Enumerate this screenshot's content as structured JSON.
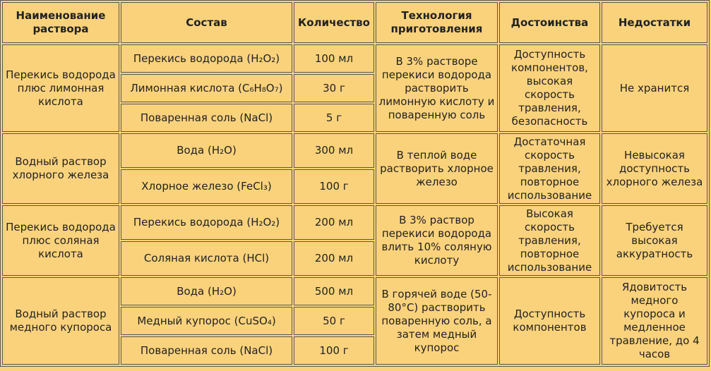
{
  "table": {
    "header": [
      "Наименование раствора",
      "Состав",
      "Количество",
      "Технология приготовления",
      "Достоинства",
      "Недостатки"
    ],
    "groups": [
      {
        "name": "Перекись водорода плюс лимонная кислота",
        "items": [
          {
            "composition": "Перекись водорода (H₂O₂)",
            "amount": "100 мл"
          },
          {
            "composition": "Лимонная кислота (C₆H₈O₇)",
            "amount": "30 г"
          },
          {
            "composition": "Поваренная соль (NaCl)",
            "amount": "5 г"
          }
        ],
        "technology": "В 3% растворе перекиси водорода растворить лимонную кислоту и поваренную соль",
        "advantages": "Доступность компонентов, высокая скорость травления, безопасность",
        "disadvantages": "Не хранится"
      },
      {
        "name": "Водный раствор хлорного железа",
        "items": [
          {
            "composition": "Вода (H₂O)",
            "amount": "300 мл"
          },
          {
            "composition": "Хлорное железо (FeCl₃)",
            "amount": "100 г"
          }
        ],
        "technology": "В теплой воде растворить хлорное железо",
        "advantages": "Достаточная скорость травления, повторное использование",
        "disadvantages": "Невысокая доступность хлорного железа"
      },
      {
        "name": "Перекись водорода плюс соляная кислота",
        "items": [
          {
            "composition": "Перекись водорода (H₂O₂)",
            "amount": "200 мл"
          },
          {
            "composition": "Соляная кислота (HCl)",
            "amount": "200 мл"
          }
        ],
        "technology": "В 3% раствор перекиси водорода влить 10% соляную кислоту",
        "advantages": "Высокая скорость травления, повторное использование",
        "disadvantages": "Требуется высокая аккуратность"
      },
      {
        "name": "Водный раствор медного купороса",
        "items": [
          {
            "composition": "Вода (H₂O)",
            "amount": "500 мл"
          },
          {
            "composition": "Медный купорос (CuSO₄)",
            "amount": "50 г"
          },
          {
            "composition": "Поваренная соль (NaCl)",
            "amount": "100 г"
          }
        ],
        "technology": "В горячей воде (50-80°C) растворить поваренную соль, а затем медный купорос",
        "advantages": "Доступность компонентов",
        "disadvantages": "Ядовитость медного купороса и медленное травление, до 4 часов"
      }
    ]
  }
}
